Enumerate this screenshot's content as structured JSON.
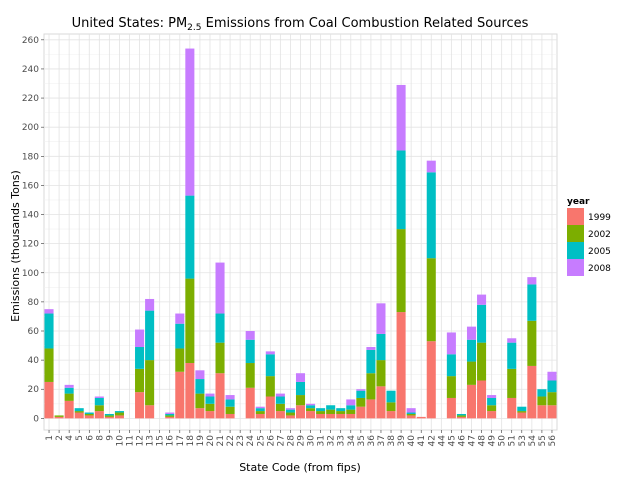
{
  "chart_data": {
    "type": "bar",
    "stacked": true,
    "title": "United States: PM",
    "title_subscript": "2.5",
    "title_suffix": " Emissions from Coal Combustion Related Sources",
    "xlabel": "State Code (from fips)",
    "ylabel": "Emissions (thousands Tons)",
    "ylim": [
      -8,
      264
    ],
    "yticks": [
      0,
      20,
      40,
      60,
      80,
      100,
      120,
      140,
      160,
      180,
      200,
      220,
      240,
      260
    ],
    "grid": true,
    "legend": {
      "title": "year",
      "position": "right"
    },
    "categories": [
      "1",
      "2",
      "4",
      "5",
      "6",
      "8",
      "9",
      "10",
      "11",
      "12",
      "13",
      "15",
      "16",
      "17",
      "18",
      "19",
      "20",
      "21",
      "22",
      "23",
      "24",
      "25",
      "26",
      "27",
      "28",
      "29",
      "30",
      "31",
      "32",
      "33",
      "34",
      "35",
      "36",
      "37",
      "38",
      "39",
      "40",
      "41",
      "42",
      "44",
      "45",
      "46",
      "47",
      "48",
      "49",
      "50",
      "51",
      "53",
      "54",
      "55",
      "56"
    ],
    "series": [
      {
        "name": "1999",
        "color": "#F8766D",
        "values": [
          25,
          1,
          12,
          4,
          2,
          5,
          1,
          2,
          0,
          18,
          9,
          0,
          1,
          32,
          38,
          7,
          5,
          31,
          3,
          0,
          21,
          3,
          15,
          5,
          2,
          9,
          5,
          3,
          3,
          3,
          3,
          8,
          13,
          22,
          5,
          73,
          2,
          1,
          53,
          0,
          14,
          1,
          23,
          26,
          5,
          0,
          14,
          4,
          36,
          9,
          9
        ]
      },
      {
        "name": "2002",
        "color": "#7CAE00",
        "values": [
          23,
          1,
          5,
          1,
          1,
          4,
          1,
          2,
          0,
          16,
          31,
          0,
          1,
          16,
          58,
          10,
          5,
          21,
          5,
          0,
          17,
          2,
          14,
          5,
          2,
          7,
          2,
          2,
          3,
          2,
          3,
          6,
          18,
          18,
          6,
          57,
          1,
          0,
          57,
          0,
          15,
          1,
          16,
          26,
          4,
          0,
          20,
          1,
          31,
          6,
          9
        ]
      },
      {
        "name": "2005",
        "color": "#00BFC4",
        "values": [
          24,
          0,
          4,
          2,
          1,
          5,
          1,
          1,
          0,
          15,
          34,
          0,
          1,
          17,
          57,
          10,
          5,
          20,
          5,
          0,
          16,
          2,
          15,
          5,
          2,
          9,
          2,
          2,
          3,
          2,
          3,
          5,
          16,
          18,
          8,
          54,
          1,
          0,
          59,
          0,
          15,
          1,
          15,
          26,
          5,
          0,
          18,
          3,
          25,
          5,
          8
        ]
      },
      {
        "name": "2008",
        "color": "#C77CFF",
        "values": [
          3,
          0,
          2,
          0,
          0,
          1,
          0,
          0,
          0,
          12,
          8,
          0,
          1,
          7,
          101,
          6,
          2,
          35,
          3,
          0,
          6,
          1,
          2,
          2,
          1,
          6,
          1,
          0,
          0,
          0,
          4,
          1,
          2,
          21,
          0,
          45,
          3,
          0,
          8,
          0,
          15,
          0,
          9,
          7,
          2,
          0,
          3,
          0,
          5,
          0,
          6
        ]
      }
    ]
  }
}
